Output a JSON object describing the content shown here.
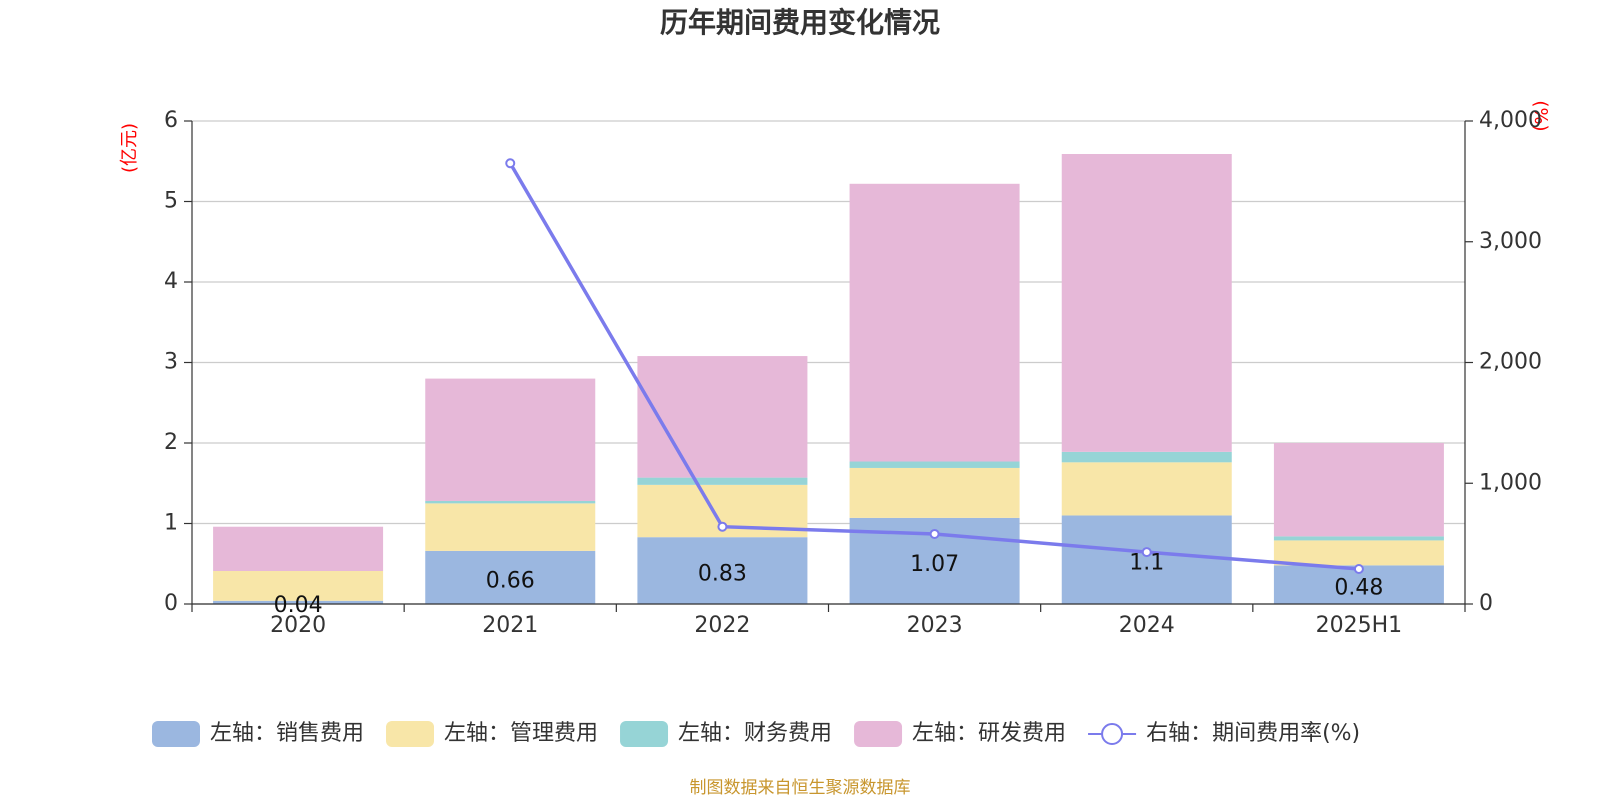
{
  "chart_data": {
    "type": "bar",
    "title": "历年期间费用变化情况",
    "left_unit": "(亿元)",
    "right_unit": "(%)",
    "categories": [
      "2020",
      "2021",
      "2022",
      "2023",
      "2024",
      "2025H1"
    ],
    "left_ylim": [
      0,
      6
    ],
    "left_ticks": [
      "0",
      "1",
      "2",
      "3",
      "4",
      "5",
      "6"
    ],
    "right_ylim": [
      0,
      4000
    ],
    "right_ticks": [
      "0",
      "1,000",
      "2,000",
      "3,000",
      "4,000"
    ],
    "grid": true,
    "legend_position": "bottom",
    "series": [
      {
        "name": "左轴：销售费用",
        "axis": "left",
        "type": "bar",
        "color": "#9bb7e0",
        "values": [
          0.04,
          0.66,
          0.83,
          1.07,
          1.1,
          0.48
        ],
        "labels": [
          "0.04",
          "0.66",
          "0.83",
          "1.07",
          "1.1",
          "0.48"
        ]
      },
      {
        "name": "左轴：管理费用",
        "axis": "left",
        "type": "bar",
        "color": "#f8e6a8",
        "values": [
          0.37,
          0.59,
          0.65,
          0.62,
          0.66,
          0.31
        ]
      },
      {
        "name": "左轴：财务费用",
        "axis": "left",
        "type": "bar",
        "color": "#96d4d6",
        "values": [
          0.0,
          0.03,
          0.09,
          0.08,
          0.13,
          0.05
        ]
      },
      {
        "name": "左轴：研发费用",
        "axis": "left",
        "type": "bar",
        "color": "#e6b8d8",
        "values": [
          0.55,
          1.52,
          1.51,
          3.45,
          3.7,
          1.16
        ]
      },
      {
        "name": "右轴：期间费用率(%)",
        "axis": "right",
        "type": "line",
        "color": "#7b7bec",
        "values": [
          null,
          3650,
          640,
          580,
          430,
          290
        ]
      }
    ]
  },
  "source": "制图数据来自恒生聚源数据库"
}
